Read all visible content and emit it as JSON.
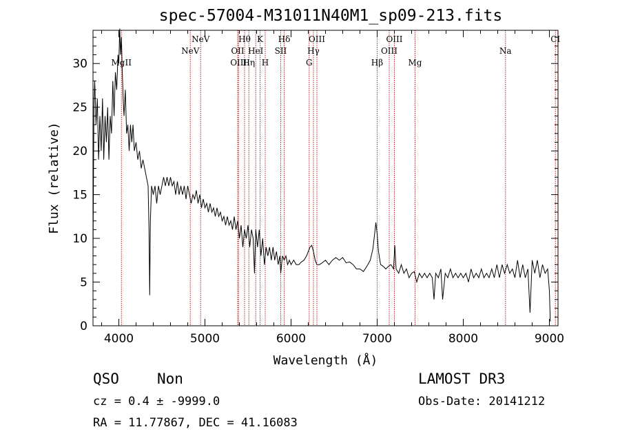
{
  "header": {
    "title": "spec-57004-M31011N40M1_sp09-213.fits"
  },
  "info": {
    "class": "QSO",
    "subclass": "Non",
    "cz": "cz = 0.4 ± -9999.0",
    "radec": "RA =  11.77867, DEC =  41.16083",
    "survey": "LAMOST DR3",
    "obsdate": "Obs-Date: 20141212"
  },
  "chart_data": {
    "type": "line",
    "title": "spec-57004-M31011N40M1_sp09-213.fits",
    "xlabel": "Wavelength (Å)",
    "ylabel": "Flux (relative)",
    "xlim": [
      3700,
      9100
    ],
    "ylim": [
      0,
      33.8
    ],
    "xticks": [
      4000,
      5000,
      6000,
      7000,
      8000,
      9000
    ],
    "yticks": [
      0,
      5,
      10,
      15,
      20,
      25,
      30
    ],
    "line_color": "#000000",
    "marker_color": "#b22222",
    "emission_lines": [
      {
        "label": "MgII",
        "wave": 4030,
        "row": 3
      },
      {
        "label": "NeV",
        "wave": 4830,
        "row": 2
      },
      {
        "label": "NeV",
        "wave": 4950,
        "row": 1
      },
      {
        "label": "OII",
        "wave": 5380,
        "row": 2
      },
      {
        "label": "OIII",
        "wave": 5390,
        "row": 3
      },
      {
        "label": "Hθ",
        "wave": 5460,
        "row": 1
      },
      {
        "label": "Hη",
        "wave": 5510,
        "row": 3
      },
      {
        "label": "HeI",
        "wave": 5590,
        "row": 2
      },
      {
        "label": "K",
        "wave": 5640,
        "row": 1
      },
      {
        "label": "H",
        "wave": 5700,
        "row": 3
      },
      {
        "label": "SII",
        "wave": 5880,
        "row": 2
      },
      {
        "label": "Hδ",
        "wave": 5920,
        "row": 1
      },
      {
        "label": "G",
        "wave": 6210,
        "row": 3
      },
      {
        "label": "Hγ",
        "wave": 6260,
        "row": 2
      },
      {
        "label": "OIII",
        "wave": 6300,
        "row": 1
      },
      {
        "label": "Hβ",
        "wave": 7000,
        "row": 3
      },
      {
        "label": "OIII",
        "wave": 7140,
        "row": 2
      },
      {
        "label": "OIII",
        "wave": 7200,
        "row": 1
      },
      {
        "label": "Mg",
        "wave": 7440,
        "row": 3
      },
      {
        "label": "Na",
        "wave": 8490,
        "row": 2
      },
      {
        "label": "CI",
        "wave": 9070,
        "row": 1
      }
    ],
    "series": [
      {
        "name": "flux",
        "points": [
          [
            3700,
            8
          ],
          [
            3710,
            25
          ],
          [
            3720,
            28
          ],
          [
            3735,
            23
          ],
          [
            3750,
            26
          ],
          [
            3765,
            19
          ],
          [
            3780,
            24
          ],
          [
            3795,
            20
          ],
          [
            3810,
            26
          ],
          [
            3825,
            19
          ],
          [
            3840,
            24
          ],
          [
            3855,
            21
          ],
          [
            3870,
            25
          ],
          [
            3885,
            19
          ],
          [
            3900,
            24
          ],
          [
            3915,
            22
          ],
          [
            3930,
            28
          ],
          [
            3945,
            24
          ],
          [
            3960,
            29
          ],
          [
            3975,
            27
          ],
          [
            3990,
            31
          ],
          [
            4000,
            30
          ],
          [
            4010,
            34
          ],
          [
            4020,
            31
          ],
          [
            4030,
            33
          ],
          [
            4040,
            29
          ],
          [
            4050,
            26
          ],
          [
            4060,
            24
          ],
          [
            4075,
            27
          ],
          [
            4090,
            22
          ],
          [
            4105,
            23
          ],
          [
            4120,
            20
          ],
          [
            4135,
            23
          ],
          [
            4150,
            21
          ],
          [
            4165,
            23
          ],
          [
            4180,
            20
          ],
          [
            4200,
            21
          ],
          [
            4220,
            19
          ],
          [
            4240,
            20
          ],
          [
            4260,
            18
          ],
          [
            4280,
            19
          ],
          [
            4300,
            18
          ],
          [
            4320,
            17
          ],
          [
            4340,
            16
          ],
          [
            4350,
            11
          ],
          [
            4358,
            3.5
          ],
          [
            4366,
            12
          ],
          [
            4380,
            16
          ],
          [
            4400,
            15
          ],
          [
            4420,
            16
          ],
          [
            4440,
            14
          ],
          [
            4460,
            16
          ],
          [
            4480,
            15
          ],
          [
            4500,
            16
          ],
          [
            4520,
            17
          ],
          [
            4540,
            16
          ],
          [
            4560,
            17
          ],
          [
            4580,
            16
          ],
          [
            4600,
            17
          ],
          [
            4620,
            16
          ],
          [
            4640,
            16.5
          ],
          [
            4660,
            15
          ],
          [
            4680,
            16.5
          ],
          [
            4700,
            15
          ],
          [
            4720,
            16
          ],
          [
            4740,
            15
          ],
          [
            4760,
            16
          ],
          [
            4780,
            14.5
          ],
          [
            4800,
            16
          ],
          [
            4820,
            15
          ],
          [
            4840,
            14
          ],
          [
            4860,
            15
          ],
          [
            4880,
            14.5
          ],
          [
            4900,
            15.5
          ],
          [
            4920,
            14
          ],
          [
            4940,
            15
          ],
          [
            4960,
            13.5
          ],
          [
            4980,
            14.5
          ],
          [
            5000,
            13.5
          ],
          [
            5020,
            14
          ],
          [
            5040,
            13
          ],
          [
            5060,
            14
          ],
          [
            5080,
            13
          ],
          [
            5100,
            13.5
          ],
          [
            5120,
            12.5
          ],
          [
            5140,
            13.5
          ],
          [
            5160,
            12.5
          ],
          [
            5180,
            13
          ],
          [
            5200,
            12
          ],
          [
            5220,
            12.5
          ],
          [
            5240,
            11.5
          ],
          [
            5260,
            12.5
          ],
          [
            5280,
            11.5
          ],
          [
            5300,
            12
          ],
          [
            5320,
            11
          ],
          [
            5340,
            12.5
          ],
          [
            5360,
            11
          ],
          [
            5380,
            12
          ],
          [
            5400,
            10
          ],
          [
            5420,
            11.5
          ],
          [
            5440,
            9
          ],
          [
            5460,
            11
          ],
          [
            5480,
            10
          ],
          [
            5500,
            11.5
          ],
          [
            5520,
            9
          ],
          [
            5540,
            11
          ],
          [
            5560,
            10
          ],
          [
            5575,
            6
          ],
          [
            5590,
            11
          ],
          [
            5610,
            9
          ],
          [
            5630,
            11
          ],
          [
            5650,
            8
          ],
          [
            5670,
            10
          ],
          [
            5690,
            7
          ],
          [
            5710,
            9
          ],
          [
            5730,
            8
          ],
          [
            5750,
            9
          ],
          [
            5770,
            7.5
          ],
          [
            5790,
            9
          ],
          [
            5810,
            7.5
          ],
          [
            5830,
            8.5
          ],
          [
            5850,
            7
          ],
          [
            5870,
            8
          ],
          [
            5880,
            6
          ],
          [
            5900,
            8
          ],
          [
            5920,
            7.5
          ],
          [
            5940,
            8
          ],
          [
            5960,
            7
          ],
          [
            5980,
            7.5
          ],
          [
            6000,
            7
          ],
          [
            6030,
            7.5
          ],
          [
            6060,
            7
          ],
          [
            6090,
            7
          ],
          [
            6120,
            7.3
          ],
          [
            6150,
            7.5
          ],
          [
            6180,
            8
          ],
          [
            6200,
            8.5
          ],
          [
            6220,
            9
          ],
          [
            6240,
            9.2
          ],
          [
            6260,
            8.5
          ],
          [
            6280,
            7.5
          ],
          [
            6300,
            7
          ],
          [
            6330,
            7
          ],
          [
            6360,
            7.2
          ],
          [
            6400,
            7.5
          ],
          [
            6440,
            7
          ],
          [
            6480,
            7.5
          ],
          [
            6520,
            7.8
          ],
          [
            6560,
            7.5
          ],
          [
            6600,
            7.8
          ],
          [
            6640,
            7.2
          ],
          [
            6680,
            7.3
          ],
          [
            6720,
            7
          ],
          [
            6760,
            6.5
          ],
          [
            6800,
            6.5
          ],
          [
            6840,
            6.2
          ],
          [
            6880,
            6.8
          ],
          [
            6920,
            7.5
          ],
          [
            6950,
            8.8
          ],
          [
            6970,
            10.5
          ],
          [
            6985,
            11.8
          ],
          [
            7000,
            10.5
          ],
          [
            7015,
            8.5
          ],
          [
            7040,
            7
          ],
          [
            7070,
            6.8
          ],
          [
            7100,
            6.5
          ],
          [
            7130,
            6.8
          ],
          [
            7160,
            7
          ],
          [
            7190,
            6.5
          ],
          [
            7205,
            9.2
          ],
          [
            7220,
            6.5
          ],
          [
            7250,
            6
          ],
          [
            7280,
            7
          ],
          [
            7310,
            6
          ],
          [
            7340,
            6.5
          ],
          [
            7370,
            5.5
          ],
          [
            7400,
            6
          ],
          [
            7430,
            6.2
          ],
          [
            7460,
            5
          ],
          [
            7490,
            6
          ],
          [
            7520,
            5.5
          ],
          [
            7550,
            6
          ],
          [
            7580,
            5.5
          ],
          [
            7610,
            6
          ],
          [
            7640,
            5.5
          ],
          [
            7660,
            3
          ],
          [
            7680,
            6
          ],
          [
            7710,
            5.5
          ],
          [
            7740,
            6.5
          ],
          [
            7760,
            3
          ],
          [
            7790,
            6
          ],
          [
            7820,
            5.5
          ],
          [
            7850,
            6.5
          ],
          [
            7880,
            5.5
          ],
          [
            7910,
            6
          ],
          [
            7940,
            5.5
          ],
          [
            7970,
            6
          ],
          [
            8000,
            5.5
          ],
          [
            8030,
            6
          ],
          [
            8060,
            5
          ],
          [
            8090,
            6.5
          ],
          [
            8120,
            5.5
          ],
          [
            8150,
            6
          ],
          [
            8180,
            5.5
          ],
          [
            8210,
            6.5
          ],
          [
            8240,
            5.5
          ],
          [
            8270,
            6
          ],
          [
            8300,
            5.5
          ],
          [
            8330,
            6.5
          ],
          [
            8360,
            5.5
          ],
          [
            8390,
            7
          ],
          [
            8420,
            5.5
          ],
          [
            8450,
            7
          ],
          [
            8480,
            6
          ],
          [
            8510,
            7
          ],
          [
            8540,
            6
          ],
          [
            8570,
            6.5
          ],
          [
            8600,
            5.5
          ],
          [
            8630,
            7.5
          ],
          [
            8660,
            5.5
          ],
          [
            8690,
            7
          ],
          [
            8720,
            5.5
          ],
          [
            8750,
            6.5
          ],
          [
            8775,
            1.5
          ],
          [
            8800,
            7.5
          ],
          [
            8830,
            6
          ],
          [
            8860,
            7.5
          ],
          [
            8890,
            5.5
          ],
          [
            8920,
            7
          ],
          [
            8950,
            6
          ],
          [
            8980,
            6.5
          ],
          [
            9000,
            4
          ],
          [
            9010,
            0.5
          ]
        ]
      }
    ]
  }
}
